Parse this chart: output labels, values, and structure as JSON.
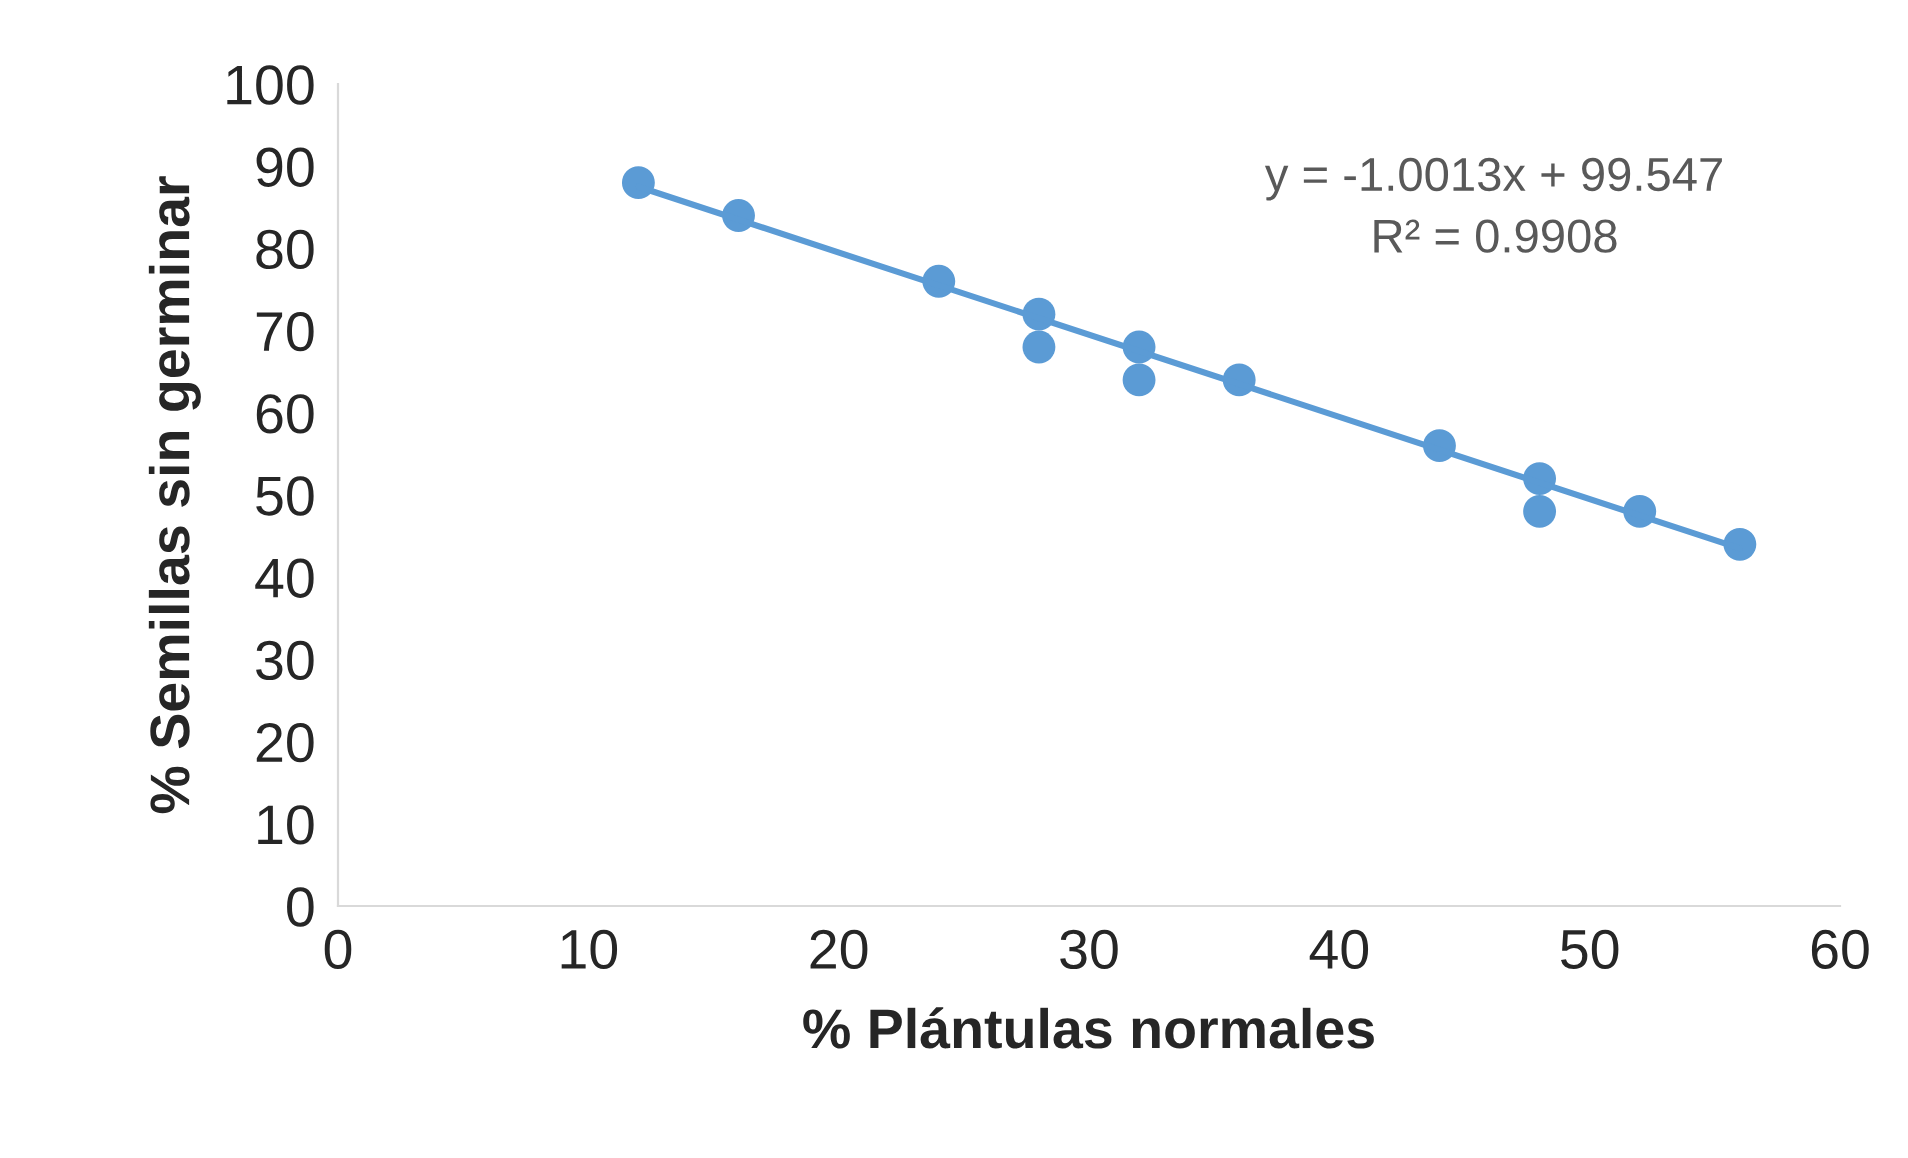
{
  "chart_data": {
    "type": "scatter",
    "xlabel": "% Plántulas normales",
    "ylabel": "% Semillas sin germinar",
    "series": [
      {
        "marker": "circle",
        "color": "#5b9bd5",
        "x": [
          12,
          16,
          24,
          28,
          28,
          32,
          32,
          36,
          44,
          48,
          48,
          52,
          56
        ],
        "values": [
          88,
          84,
          76,
          72,
          68,
          68,
          64,
          64,
          56,
          52,
          48,
          48,
          44
        ]
      },
      {
        "type": "line",
        "marker": "none",
        "color": "#5b9bd5",
        "x": [
          12,
          56
        ],
        "values": [
          87.5,
          43.5
        ]
      }
    ],
    "annotations": [
      "y = -1.0013x + 99.547",
      "R² = 0.9908"
    ],
    "xlim": [
      0,
      60
    ],
    "xticks": [
      0,
      10,
      20,
      30,
      40,
      50,
      60
    ],
    "ylim": [
      0,
      100
    ],
    "yticks": [
      0,
      10,
      20,
      30,
      40,
      50,
      60,
      70,
      80,
      90,
      100
    ],
    "grid": false,
    "legend": false,
    "line_style": "solid"
  }
}
